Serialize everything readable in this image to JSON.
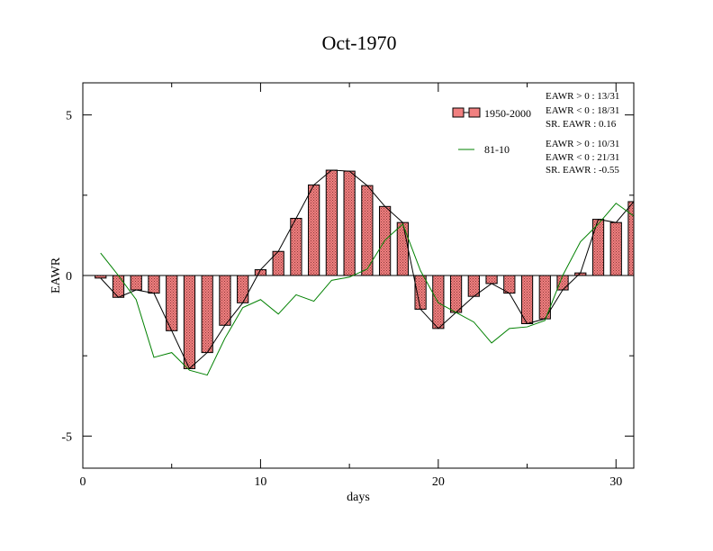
{
  "chart_data": {
    "type": "bar",
    "title": "Oct-1970",
    "xlabel": "days",
    "ylabel": "EAWR",
    "xlim": [
      0,
      31
    ],
    "ylim": [
      -6,
      6
    ],
    "xticks": [
      0,
      10,
      20,
      30
    ],
    "yticks": [
      -5,
      0,
      5
    ],
    "x": [
      1,
      2,
      3,
      4,
      5,
      6,
      7,
      8,
      9,
      10,
      11,
      12,
      13,
      14,
      15,
      16,
      17,
      18,
      19,
      20,
      21,
      22,
      23,
      24,
      25,
      26,
      27,
      28,
      29,
      30,
      31
    ],
    "series": [
      {
        "name": "1950-2000",
        "kind": "bar",
        "color": "#f08080",
        "values": [
          -0.08,
          -0.68,
          -0.45,
          -0.55,
          -1.72,
          -2.9,
          -2.4,
          -1.55,
          -0.85,
          0.18,
          0.75,
          1.78,
          2.82,
          3.28,
          3.25,
          2.8,
          2.15,
          1.65,
          -1.05,
          -1.65,
          -1.15,
          -0.65,
          -0.25,
          -0.55,
          -1.5,
          -1.35,
          -0.45,
          0.08,
          1.75,
          1.65,
          2.3
        ]
      },
      {
        "name": "81-10",
        "kind": "line",
        "color": "#008000",
        "values": [
          0.7,
          0.0,
          -0.75,
          -2.55,
          -2.4,
          -2.95,
          -3.1,
          -1.95,
          -1.0,
          -0.75,
          -1.2,
          -0.6,
          -0.8,
          -0.15,
          -0.05,
          0.2,
          1.1,
          1.6,
          0.15,
          -0.85,
          -1.15,
          -1.45,
          -2.1,
          -1.65,
          -1.6,
          -1.4,
          0.0,
          1.05,
          1.6,
          2.25,
          1.85
        ]
      }
    ],
    "legend": {
      "placement": "top-right",
      "stats_1950_2000": [
        "EAWR > 0 : 13/31",
        "EAWR < 0 : 18/31",
        "SR. EAWR :  0.16"
      ],
      "stats_81_10": [
        "EAWR > 0 : 10/31",
        "EAWR < 0 : 21/31",
        "SR. EAWR : -0.55"
      ]
    }
  }
}
